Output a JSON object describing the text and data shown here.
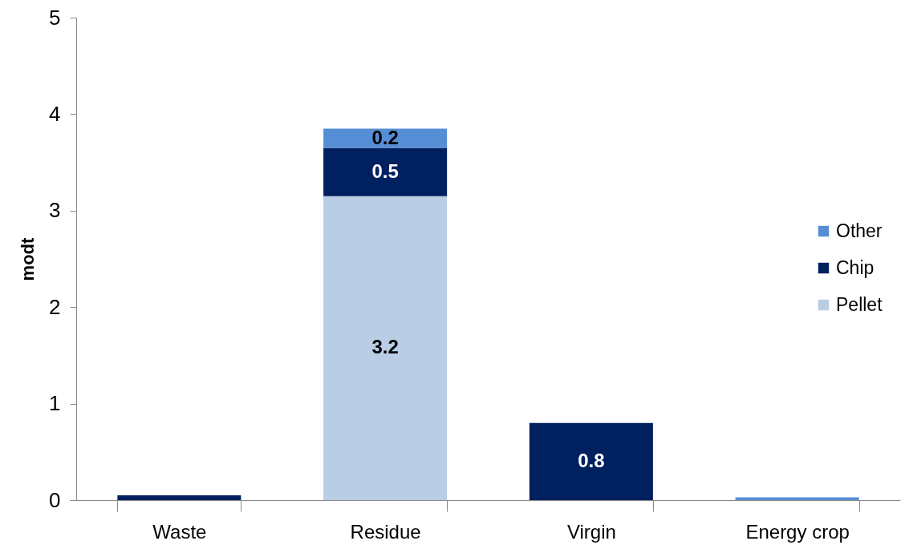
{
  "chart_data": {
    "type": "bar",
    "stacked": true,
    "ylabel": "modt",
    "categories": [
      "Waste",
      "Residue",
      "Virgin",
      "Energy crop"
    ],
    "series": [
      {
        "name": "Pellet",
        "color": "#b9cde5",
        "values": [
          0,
          3.15,
          0,
          0
        ],
        "value_labels": [
          null,
          "3.2",
          null,
          null
        ]
      },
      {
        "name": "Chip",
        "color": "#002060",
        "values": [
          0.05,
          0.5,
          0.8,
          0
        ],
        "value_labels": [
          null,
          "0.5",
          "0.8",
          null
        ]
      },
      {
        "name": "Other",
        "color": "#558ed5",
        "values": [
          0,
          0.2,
          0,
          0.03
        ],
        "value_labels": [
          null,
          "0.2",
          null,
          null
        ]
      }
    ],
    "ylim": [
      0,
      5
    ],
    "yticks": [
      0,
      1,
      2,
      3,
      4,
      5
    ],
    "grid": false,
    "legend": "right"
  }
}
